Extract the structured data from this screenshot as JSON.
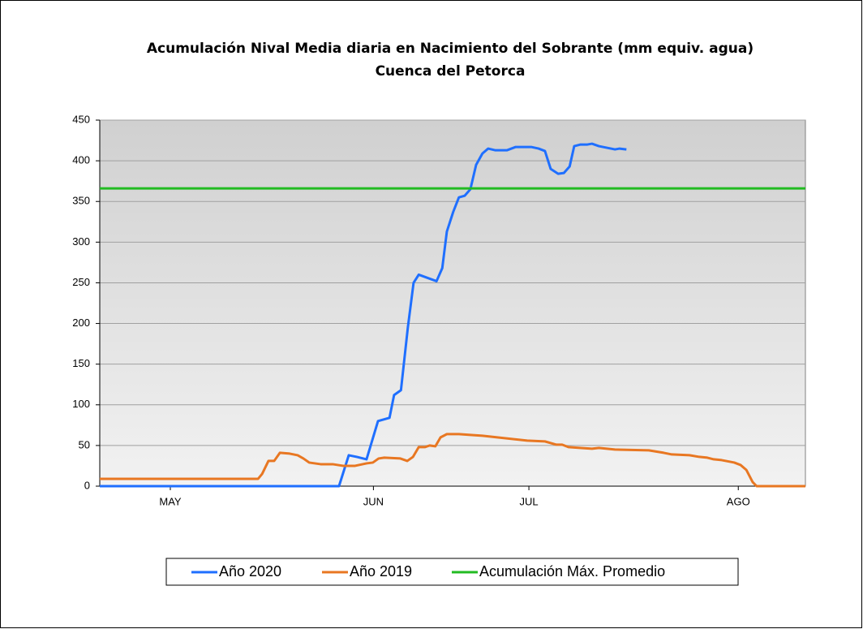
{
  "chart_data": {
    "type": "line",
    "title": [
      "Acumulación Nival Media diaria en Nacimiento del Sobrante (mm equiv. agua)",
      "Cuenca del Petorca"
    ],
    "xlim": [
      0,
      123
    ],
    "xticks": [
      {
        "value": 12.3,
        "label": "MAY"
      },
      {
        "value": 47.7,
        "label": "JUN"
      },
      {
        "value": 74.8,
        "label": "JUL"
      },
      {
        "value": 111.3,
        "label": "AGO"
      }
    ],
    "ylim": [
      0,
      450
    ],
    "yticks": [
      0,
      50,
      100,
      150,
      200,
      250,
      300,
      350,
      400,
      450
    ],
    "grid": true,
    "legend": "bottom",
    "series": [
      {
        "name": "Año 2020",
        "color": "#1f6fff",
        "x": [
          0,
          41.7,
          43.4,
          44.8,
          46.5,
          48.5,
          50.5,
          51.3,
          52.5,
          53.7,
          54.7,
          55.6,
          58.7,
          59.7,
          60.5,
          61.6,
          62.6,
          63.6,
          64.6,
          65.6,
          66.7,
          67.7,
          68.9,
          71,
          72.5,
          75.2,
          76.5,
          77.6,
          78.6,
          79.9,
          80.9,
          81.9,
          82.7,
          83.8,
          85,
          85.8,
          87,
          89.8,
          90.6,
          91.8
        ],
        "values": [
          0,
          0,
          38,
          36,
          33,
          80,
          84,
          112,
          118,
          195,
          250,
          260,
          252,
          268,
          313,
          337,
          355,
          357,
          365,
          395,
          409,
          415,
          413,
          413,
          417,
          417,
          415,
          412,
          390,
          384,
          385,
          393,
          418,
          420,
          420,
          421,
          418,
          414,
          415,
          414
        ]
      },
      {
        "name": "Año 2019",
        "color": "#e87722",
        "x": [
          0,
          27.6,
          28.3,
          29.4,
          30.4,
          31.4,
          33.1,
          34.5,
          35.5,
          36.5,
          38.5,
          40.6,
          42.4,
          44.5,
          46.5,
          47.6,
          48.6,
          49.6,
          52.4,
          53.6,
          54.6,
          55.6,
          56.7,
          57.5,
          58.5,
          59.4,
          60.5,
          62.6,
          64.6,
          66.7,
          74.5,
          77.6,
          79.6,
          80.6,
          81.7,
          83.7,
          85.8,
          87,
          89.8,
          95.7,
          98.3,
          99.7,
          102.8,
          104.5,
          105.9,
          107,
          108.4,
          110.6,
          111.7,
          112.7,
          113.8,
          114.5,
          123
        ],
        "values": [
          9,
          9,
          15,
          31,
          31,
          41,
          40,
          38,
          34,
          29,
          27,
          27,
          25,
          25,
          28,
          29,
          34,
          35,
          34,
          31,
          36,
          48,
          48,
          50,
          49,
          60,
          64,
          64,
          63,
          62,
          56,
          55,
          51,
          51,
          48,
          47,
          46,
          47,
          45,
          44,
          41,
          39,
          38,
          36,
          35,
          33,
          32,
          29,
          26,
          20,
          5,
          0,
          0
        ]
      },
      {
        "name": "Acumulación Máx. Promedio",
        "color": "#22bb22",
        "x": [
          0,
          123
        ],
        "values": [
          366,
          366
        ]
      }
    ]
  }
}
